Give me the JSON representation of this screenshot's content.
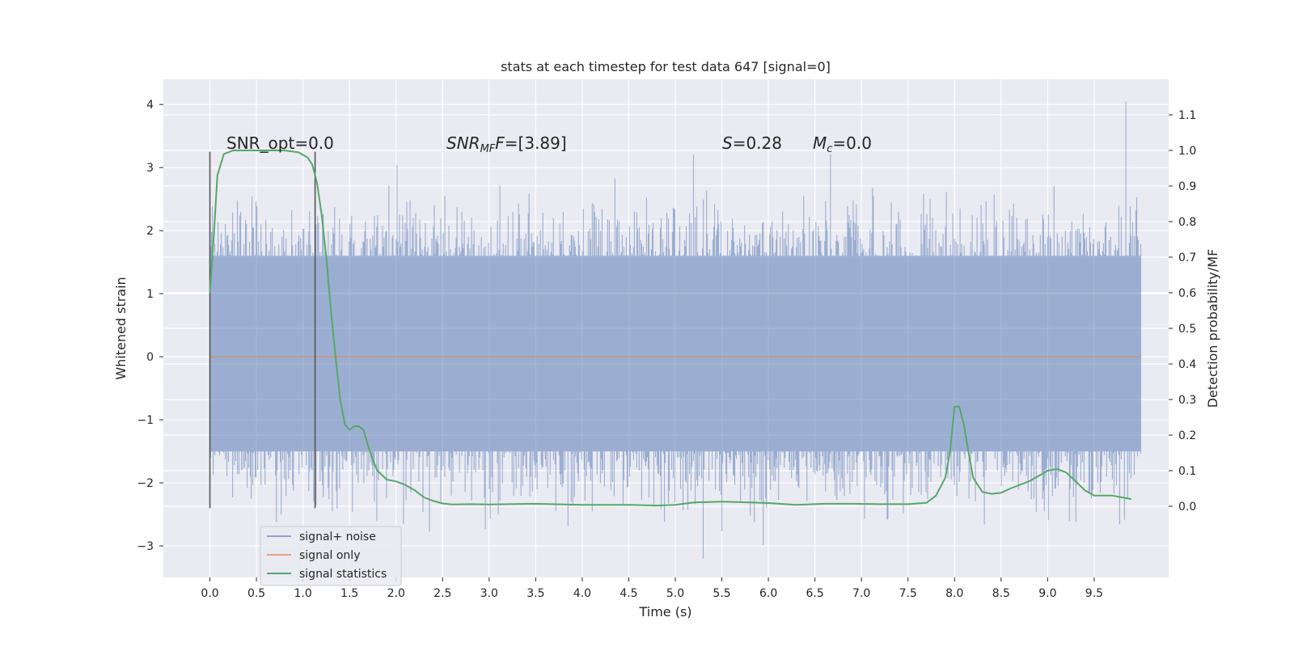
{
  "chart_data": {
    "type": "line",
    "title": "stats at each timestep for test data 647 [signal=0]",
    "xlabel": "Time (s)",
    "ylabel": "Whitened strain",
    "ylabel_right": "Detection probability/MF",
    "xlim": [
      -0.5,
      10.3
    ],
    "ylim": [
      -3.5,
      4.4
    ],
    "ylim_right": [
      -0.2,
      1.2
    ],
    "x_ticks": [
      "0.0",
      "0.5",
      "1.0",
      "1.5",
      "2.0",
      "2.5",
      "3.0",
      "3.5",
      "4.0",
      "4.5",
      "5.0",
      "5.5",
      "6.0",
      "6.5",
      "7.0",
      "7.5",
      "8.0",
      "8.5",
      "9.0",
      "9.5"
    ],
    "y_ticks": [
      "4",
      "3",
      "2",
      "1",
      "0",
      "−1",
      "−2",
      "−3"
    ],
    "y_ticks_right": [
      "1.1",
      "1.0",
      "0.9",
      "0.8",
      "0.7",
      "0.6",
      "0.5",
      "0.4",
      "0.3",
      "0.2",
      "0.1",
      "0.0"
    ],
    "grid": true,
    "legend_position": "lower-left",
    "annotations": {
      "snr_opt": "SNR_opt=0.0",
      "snr_mf_main": "SNR",
      "snr_mf_sub": "MF",
      "snr_mf_value": "=[3.89]",
      "s_main": "S",
      "s_value": "=0.28",
      "mc_main": "M",
      "mc_sub": "c",
      "mc_value": "=0.0"
    },
    "vertical_markers": [
      {
        "x": 0.0,
        "y_range": [
          -2.4,
          3.25
        ]
      },
      {
        "x": 1.13,
        "y_range": [
          -2.4,
          3.25
        ]
      }
    ],
    "series": [
      {
        "name": "signal+ noise",
        "color": "#4c72b0",
        "kind": "noise",
        "x_range": [
          0.0,
          10.0
        ],
        "envelope_typical": [
          -1.5,
          1.6
        ],
        "y_max_observed": 4.05,
        "y_min_observed": -3.2
      },
      {
        "name": "signal only",
        "color": "#dd8452",
        "x": [
          0.0,
          10.0
        ],
        "y": [
          0.0,
          0.0
        ]
      },
      {
        "name": "signal statistics",
        "color": "#55a868",
        "axis": "right",
        "x": [
          0.0,
          0.04,
          0.08,
          0.15,
          0.25,
          0.4,
          0.6,
          0.8,
          0.95,
          1.05,
          1.1,
          1.15,
          1.2,
          1.25,
          1.3,
          1.35,
          1.4,
          1.45,
          1.5,
          1.55,
          1.6,
          1.65,
          1.7,
          1.75,
          1.8,
          1.9,
          2.0,
          2.1,
          2.2,
          2.3,
          2.4,
          2.5,
          2.6,
          2.8,
          3.0,
          3.2,
          3.5,
          3.8,
          4.0,
          4.2,
          4.5,
          4.8,
          5.0,
          5.2,
          5.5,
          5.8,
          6.0,
          6.3,
          6.6,
          6.9,
          7.2,
          7.5,
          7.7,
          7.8,
          7.9,
          7.95,
          8.0,
          8.05,
          8.1,
          8.15,
          8.2,
          8.3,
          8.4,
          8.5,
          8.6,
          8.8,
          9.0,
          9.1,
          9.2,
          9.3,
          9.4,
          9.5,
          9.7,
          9.9
        ],
        "y": [
          0.6,
          0.75,
          0.93,
          0.99,
          1.0,
          1.0,
          1.0,
          1.0,
          0.995,
          0.98,
          0.96,
          0.91,
          0.82,
          0.7,
          0.55,
          0.42,
          0.3,
          0.23,
          0.215,
          0.225,
          0.225,
          0.215,
          0.17,
          0.13,
          0.1,
          0.075,
          0.07,
          0.06,
          0.045,
          0.025,
          0.015,
          0.008,
          0.005,
          0.006,
          0.005,
          0.006,
          0.007,
          0.005,
          0.004,
          0.004,
          0.004,
          0.002,
          0.004,
          0.011,
          0.013,
          0.011,
          0.009,
          0.004,
          0.007,
          0.007,
          0.006,
          0.006,
          0.01,
          0.03,
          0.08,
          0.15,
          0.28,
          0.28,
          0.23,
          0.15,
          0.08,
          0.04,
          0.035,
          0.038,
          0.05,
          0.07,
          0.1,
          0.105,
          0.095,
          0.07,
          0.045,
          0.03,
          0.03,
          0.02
        ]
      }
    ]
  }
}
